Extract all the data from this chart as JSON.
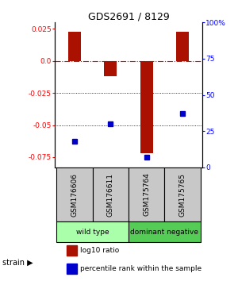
{
  "title": "GDS2691 / 8129",
  "samples": [
    "GSM176606",
    "GSM176611",
    "GSM175764",
    "GSM175765"
  ],
  "log10_ratios": [
    0.023,
    -0.012,
    -0.072,
    0.023
  ],
  "percentile_ranks": [
    0.18,
    0.3,
    0.07,
    0.37
  ],
  "bar_color": "#aa1100",
  "dot_color": "#0000cc",
  "ylim_left": [
    -0.083,
    0.03
  ],
  "ylim_right": [
    0.0,
    1.0
  ],
  "yticks_left": [
    0.025,
    0.0,
    -0.025,
    -0.05,
    -0.075
  ],
  "yticks_right": [
    1.0,
    0.75,
    0.5,
    0.25,
    0.0
  ],
  "ytick_labels_right": [
    "100%",
    "75",
    "50",
    "25",
    "0"
  ],
  "dotted_lines": [
    -0.025,
    -0.05
  ],
  "sample_col_color": "#c8c8c8",
  "group_ranges": [
    [
      0,
      1,
      "wild type",
      "#aaffaa"
    ],
    [
      2,
      3,
      "dominant negative",
      "#55cc55"
    ]
  ]
}
